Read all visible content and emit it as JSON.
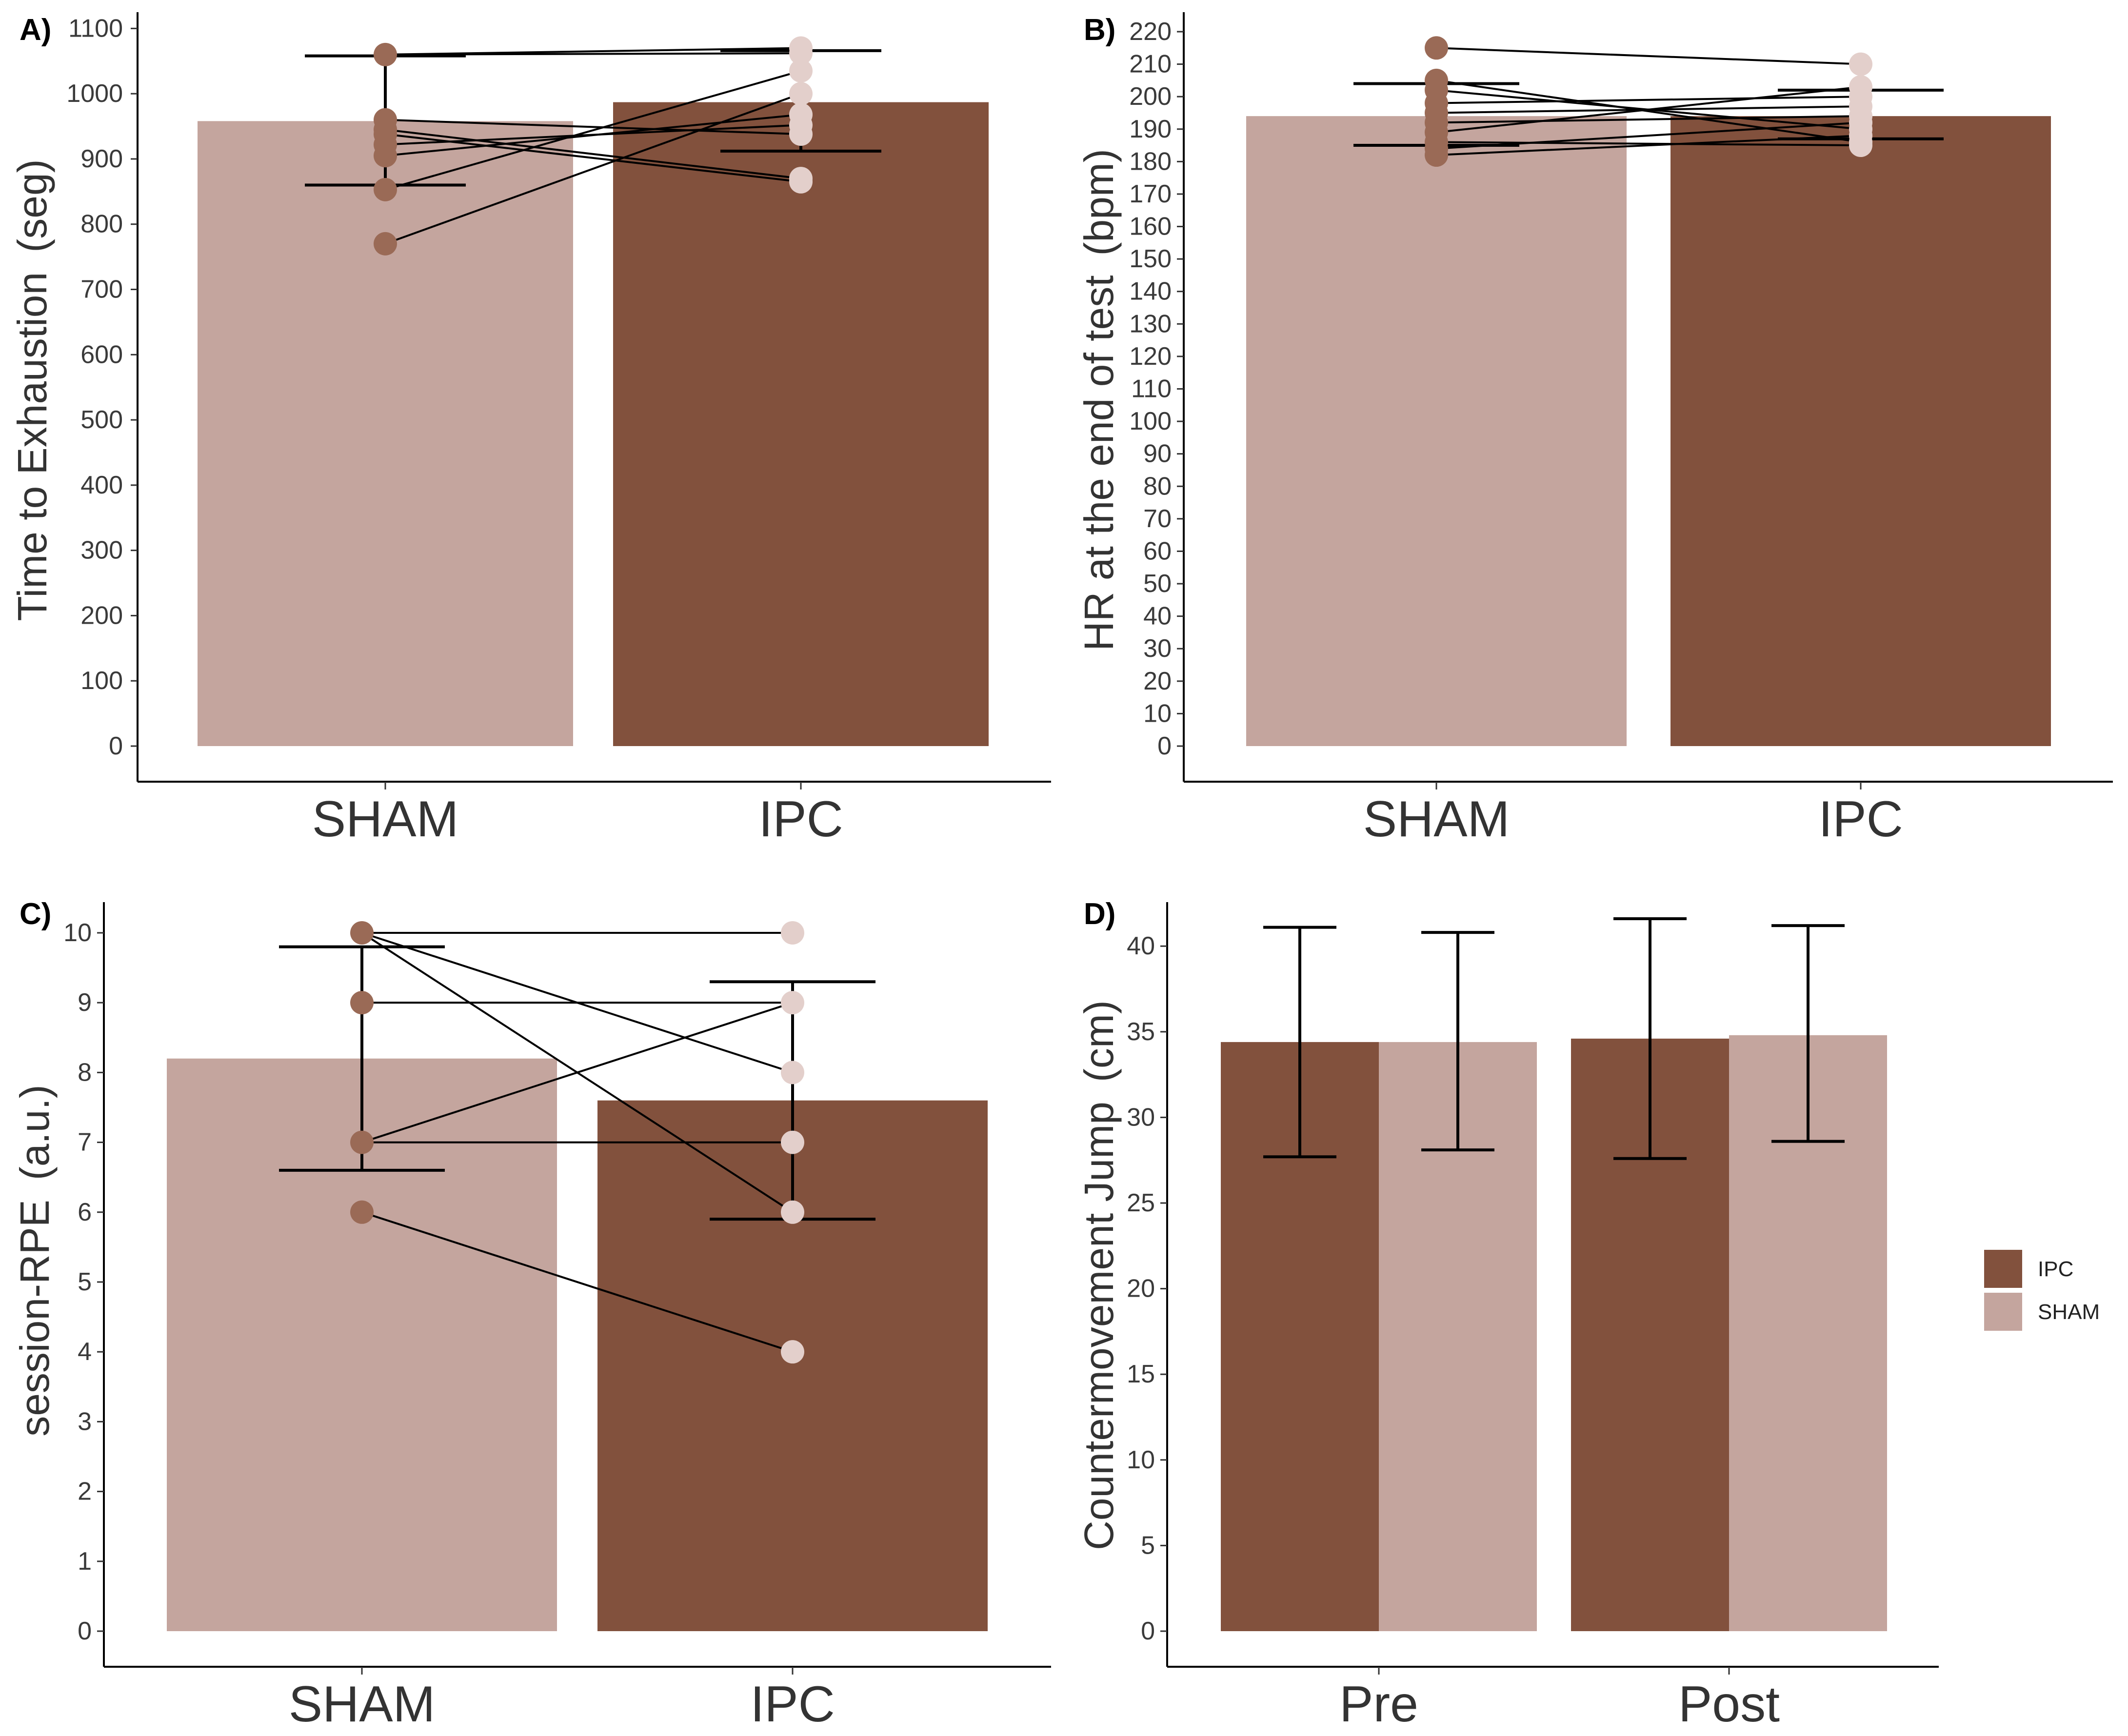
{
  "colors": {
    "IPC": "#82513d",
    "SHAM": "#c4a59e",
    "IPC_point": "#9a6a56",
    "SHAM_point": "#e3cfcb",
    "line": "#000000"
  },
  "legend": {
    "items": [
      {
        "label": "IPC",
        "color": "#82513d"
      },
      {
        "label": "SHAM",
        "color": "#c4a59e"
      }
    ],
    "placement": "right"
  },
  "chart_data": [
    {
      "panel_label": "A)",
      "type": "bar",
      "ylabel_main": "Time to Exhaustion",
      "ylabel_unit": "(seg)",
      "categories": [
        "SHAM",
        "IPC"
      ],
      "values": [
        958,
        987
      ],
      "error_low": [
        860,
        912
      ],
      "error_high": [
        1058,
        1066
      ],
      "ylim": [
        0,
        1110
      ],
      "yticks": [
        0,
        100,
        200,
        300,
        400,
        500,
        600,
        700,
        800,
        900,
        1000,
        1100
      ],
      "points": {
        "SHAM": [
          1060,
          960,
          945,
          938,
          922,
          905,
          853,
          770
        ],
        "IPC": [
          1070,
          1062,
          1035,
          1000,
          968,
          952,
          938,
          870,
          865
        ]
      },
      "pairs": [
        [
          1060,
          1062
        ],
        [
          1060,
          1070
        ],
        [
          960,
          938
        ],
        [
          945,
          870
        ],
        [
          938,
          865
        ],
        [
          922,
          952
        ],
        [
          905,
          968
        ],
        [
          853,
          1035
        ],
        [
          770,
          1000
        ]
      ]
    },
    {
      "panel_label": "B)",
      "type": "bar",
      "ylabel_main": "HR at the end of test",
      "ylabel_unit": "(bpm)",
      "categories": [
        "SHAM",
        "IPC"
      ],
      "values": [
        194,
        194
      ],
      "error_low": [
        185,
        187
      ],
      "error_high": [
        204,
        202
      ],
      "ylim": [
        0,
        223
      ],
      "yticks": [
        0,
        10,
        20,
        30,
        40,
        50,
        60,
        70,
        80,
        90,
        100,
        110,
        120,
        130,
        140,
        150,
        160,
        170,
        180,
        190,
        200,
        210,
        220
      ],
      "points": {
        "SHAM": [
          215,
          205,
          202,
          198,
          195,
          192,
          189,
          186,
          184,
          182
        ],
        "IPC": [
          210,
          203,
          200,
          197,
          194,
          192,
          190,
          188,
          186,
          185
        ]
      },
      "pairs": [
        [
          215,
          210
        ],
        [
          205,
          186
        ],
        [
          202,
          190
        ],
        [
          198,
          200
        ],
        [
          195,
          197
        ],
        [
          192,
          194
        ],
        [
          189,
          203
        ],
        [
          186,
          185
        ],
        [
          184,
          192
        ],
        [
          182,
          188
        ]
      ]
    },
    {
      "panel_label": "C)",
      "type": "bar",
      "ylabel_main": "session-RPE",
      "ylabel_unit": "(a.u.)",
      "categories": [
        "SHAM",
        "IPC"
      ],
      "values": [
        8.2,
        7.6
      ],
      "error_low": [
        6.6,
        5.9
      ],
      "error_high": [
        9.8,
        9.3
      ],
      "ylim": [
        0,
        10.3
      ],
      "yticks": [
        0,
        1,
        2,
        3,
        4,
        5,
        6,
        7,
        8,
        9,
        10
      ],
      "points": {
        "SHAM": [
          10,
          9,
          7,
          6
        ],
        "IPC": [
          10,
          9,
          8,
          7,
          6,
          4
        ]
      },
      "pairs": [
        [
          10,
          10
        ],
        [
          10,
          8
        ],
        [
          10,
          6
        ],
        [
          9,
          9
        ],
        [
          7,
          9
        ],
        [
          7,
          7
        ],
        [
          6,
          4
        ]
      ]
    },
    {
      "panel_label": "D)",
      "type": "bar",
      "ylabel_main": "Countermovement Jump",
      "ylabel_unit": "(cm)",
      "categories": [
        "Pre",
        "Post"
      ],
      "series": [
        {
          "name": "IPC",
          "values": [
            34.4,
            34.6
          ],
          "error_low": [
            27.7,
            27.6
          ],
          "error_high": [
            41.1,
            41.6
          ]
        },
        {
          "name": "SHAM",
          "values": [
            34.4,
            34.8
          ],
          "error_low": [
            28.1,
            28.6
          ],
          "error_high": [
            40.8,
            41.2
          ]
        }
      ],
      "ylim": [
        0,
        42
      ],
      "yticks": [
        0,
        5,
        10,
        15,
        20,
        25,
        30,
        35,
        40
      ]
    }
  ]
}
